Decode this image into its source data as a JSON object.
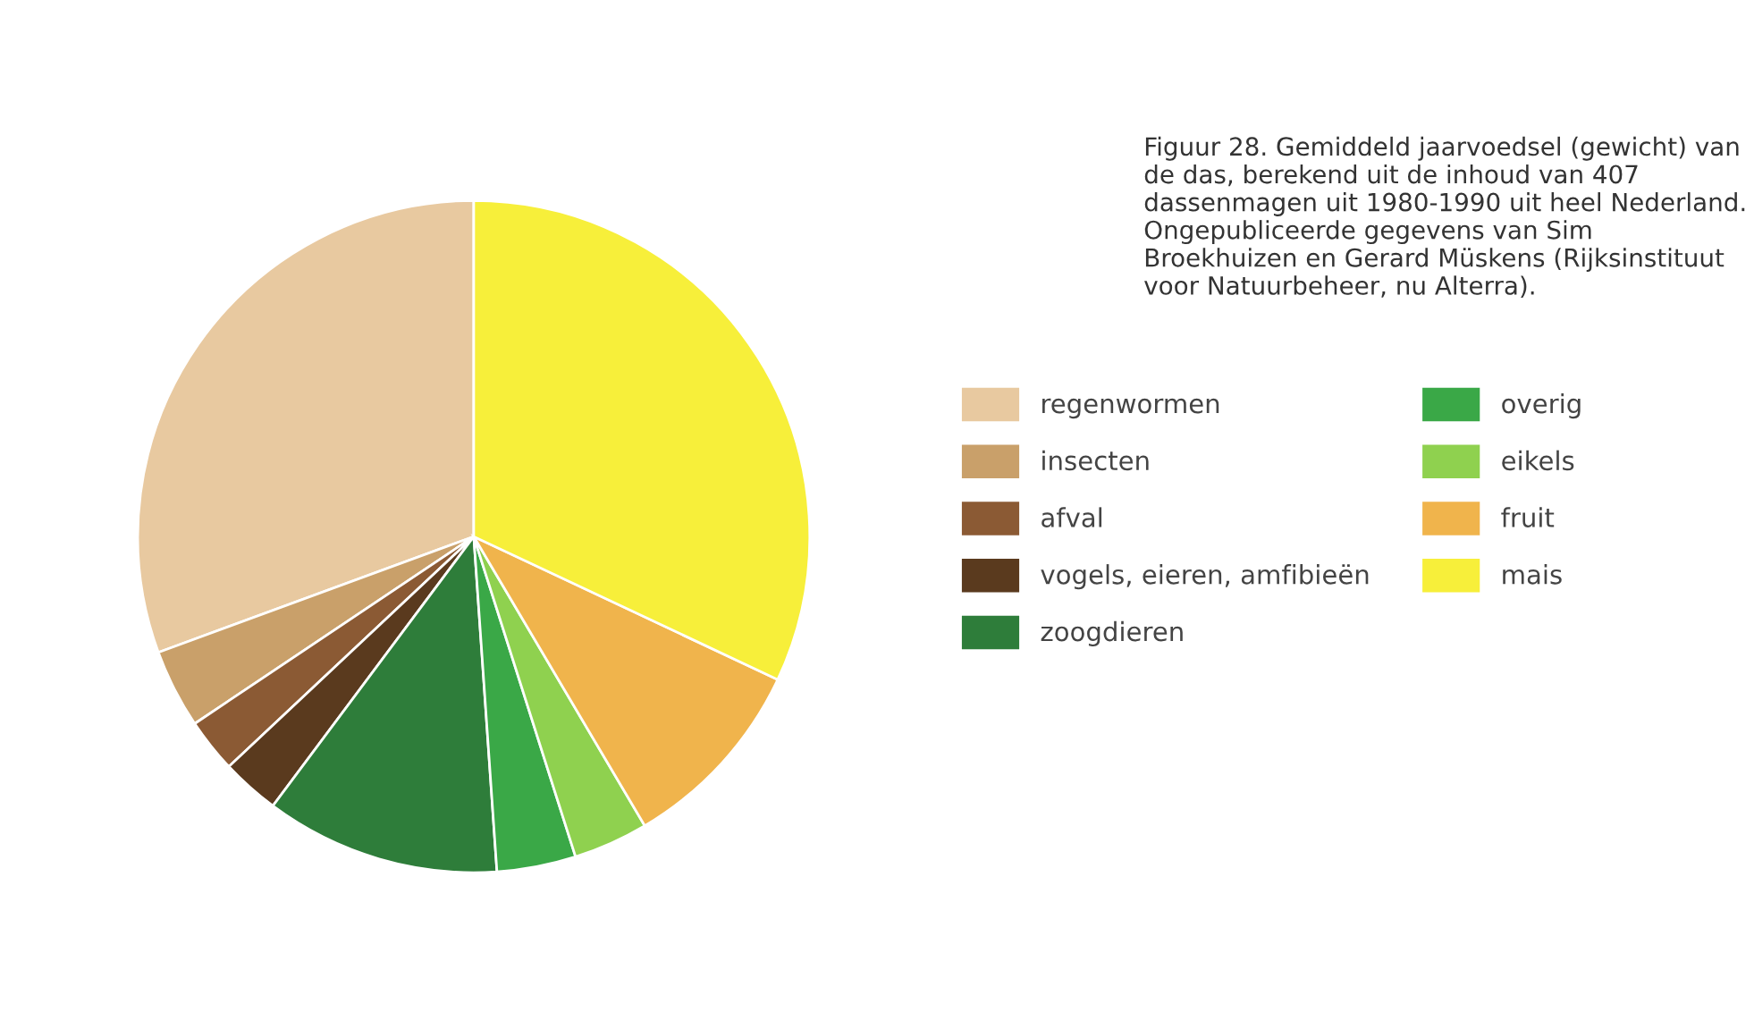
{
  "chart_data": {
    "type": "pie",
    "title": "Figuur 28. Gemiddeld jaarvoedsel (gewicht) van de das, berekend uit de inhoud van 407 dassenmagen uit 1980-1990 uit heel Nederland. Ongepubliceerde gegevens van Sim Broekhuizen en Gerard Müskens (Rijksinstituut voor Natuurbeheer, nu Alterra).",
    "categories": [
      "regenwormen",
      "insecten",
      "afval",
      "vogels, eieren, amfibieën",
      "zoogdieren",
      "overig",
      "eikels",
      "fruit",
      "mais"
    ],
    "values": [
      30.6,
      3.8,
      2.6,
      2.8,
      11.3,
      3.8,
      3.6,
      9.5,
      32.0
    ],
    "colors": [
      "#e8c9a0",
      "#c9a06a",
      "#8b5a34",
      "#5a3a1e",
      "#2e7d3a",
      "#3aa847",
      "#8fd14f",
      "#f0b44c",
      "#f7ef3a"
    ],
    "legend": "right"
  }
}
